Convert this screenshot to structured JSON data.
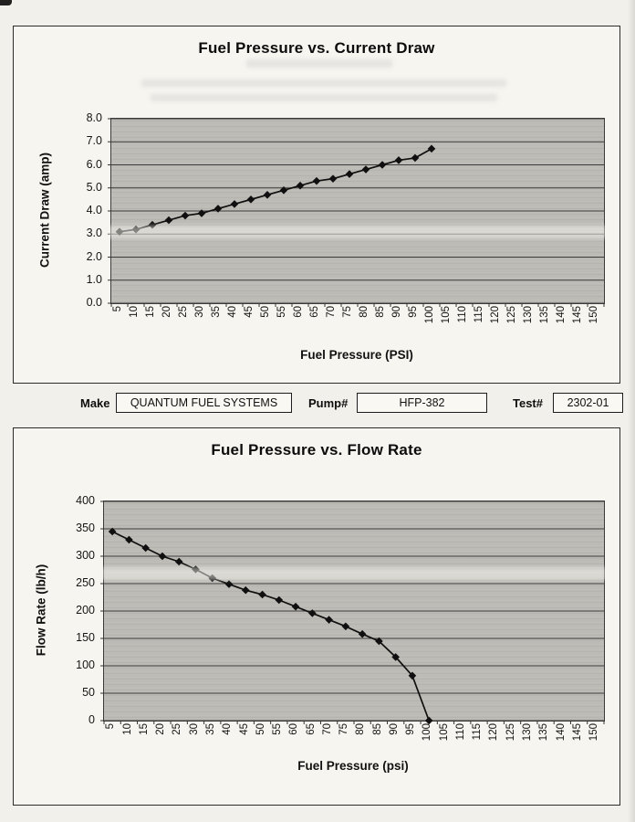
{
  "header_fields": {
    "make_label": "Make",
    "make_value": "QUANTUM FUEL SYSTEMS",
    "pump_label": "Pump#",
    "pump_value": "HFP-382",
    "test_label": "Test#",
    "test_value": "2302-01"
  },
  "chart_data": [
    {
      "type": "line",
      "title": "Fuel Pressure vs. Current Draw",
      "xlabel": "Fuel Pressure (PSI)",
      "ylabel": "Current Draw (amp)",
      "x_ticks": [
        5,
        10,
        15,
        20,
        25,
        30,
        35,
        40,
        45,
        50,
        55,
        60,
        65,
        70,
        75,
        80,
        85,
        90,
        95,
        100,
        105,
        110,
        115,
        120,
        125,
        130,
        135,
        140,
        145,
        150
      ],
      "x": [
        5,
        10,
        15,
        20,
        25,
        30,
        35,
        40,
        45,
        50,
        55,
        60,
        65,
        70,
        75,
        80,
        85,
        90,
        95,
        100
      ],
      "values": [
        3.1,
        3.2,
        3.4,
        3.6,
        3.8,
        3.9,
        4.1,
        4.3,
        4.5,
        4.7,
        4.9,
        5.1,
        5.3,
        5.4,
        5.6,
        5.8,
        6.0,
        6.2,
        6.3,
        6.7
      ],
      "ylim": [
        0,
        8
      ],
      "ytick_step": 1,
      "y_decimals": 1,
      "grid": true,
      "legend": "none",
      "marker": "diamond"
    },
    {
      "type": "line",
      "title": "Fuel Pressure vs. Flow Rate",
      "xlabel": "Fuel Pressure (psi)",
      "ylabel": "Flow Rate (lb/h)",
      "x_ticks": [
        5,
        10,
        15,
        20,
        25,
        30,
        35,
        40,
        45,
        50,
        55,
        60,
        65,
        70,
        75,
        80,
        85,
        90,
        95,
        100,
        105,
        110,
        115,
        120,
        125,
        130,
        135,
        140,
        145,
        150
      ],
      "x": [
        5,
        10,
        15,
        20,
        25,
        30,
        35,
        40,
        45,
        50,
        55,
        60,
        65,
        70,
        75,
        80,
        85,
        90,
        95,
        100
      ],
      "values": [
        345,
        330,
        315,
        300,
        290,
        276,
        260,
        249,
        238,
        230,
        220,
        208,
        196,
        184,
        172,
        158,
        145,
        116,
        82,
        0
      ],
      "ylim": [
        0,
        400
      ],
      "ytick_step": 50,
      "y_decimals": 0,
      "grid": true,
      "legend": "none",
      "marker": "diamond"
    }
  ]
}
